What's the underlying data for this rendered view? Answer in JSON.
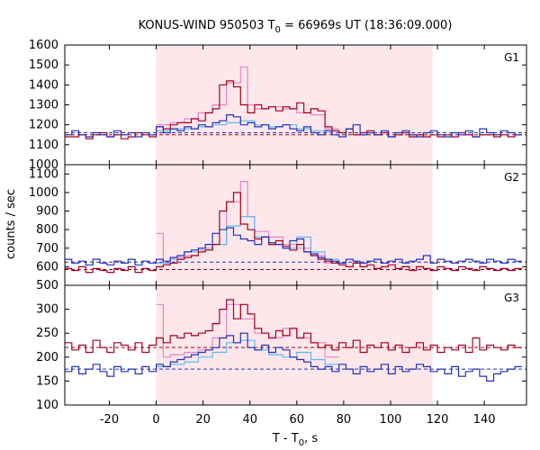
{
  "chart_data": {
    "type": "line",
    "title_main": "KONUS-WIND 950503 T",
    "title_sub": "0",
    "title_tail": " = 66969s UT (18:36:09.000)",
    "xlabel_main": "T - T",
    "xlabel_sub": "0",
    "xlabel_tail": ", s",
    "ylabel": "counts / sec",
    "xlim": [
      -39,
      158
    ],
    "x_ticks": [
      -20,
      0,
      20,
      40,
      60,
      80,
      100,
      120,
      140
    ],
    "x_tick_labels": [
      "-20",
      "0",
      "20",
      "40",
      "60",
      "80",
      "100",
      "120",
      "140"
    ],
    "shaded_interval": [
      0,
      118
    ],
    "colors": {
      "shade": "#fde7ea",
      "dark_red": "#a3001c",
      "pink": "#e883c8",
      "blue": "#2230b8",
      "light_blue": "#5fb8f0"
    },
    "panels": [
      {
        "name": "G1",
        "label": "G1",
        "ylim": [
          1000,
          1600
        ],
        "y_ticks": [
          1000,
          1100,
          1200,
          1300,
          1400,
          1500,
          1600
        ],
        "y_tick_labels": [
          "1000",
          "1100",
          "1200",
          "1300",
          "1400",
          "1500",
          "1600"
        ],
        "bg_red": 1150,
        "bg_blue": 1160,
        "dark_red_x": [
          -39,
          -33,
          -30,
          -27,
          -24,
          -21,
          -18,
          -15,
          -12,
          -9,
          -6,
          -3,
          0,
          3,
          6,
          9,
          12,
          15,
          18,
          21,
          24,
          27,
          30,
          33,
          36,
          39,
          42,
          45,
          48,
          51,
          54,
          57,
          60,
          63,
          66,
          69,
          72,
          75,
          78,
          81,
          84,
          87,
          90,
          93,
          96,
          99,
          102,
          105,
          108,
          111,
          114,
          117,
          120,
          123,
          126,
          129,
          132,
          135,
          138,
          141,
          144,
          147,
          150,
          153
        ],
        "dark_red_y": [
          1140,
          1150,
          1130,
          1150,
          1160,
          1140,
          1150,
          1130,
          1140,
          1160,
          1150,
          1140,
          1190,
          1180,
          1200,
          1210,
          1210,
          1230,
          1220,
          1260,
          1280,
          1400,
          1420,
          1390,
          1300,
          1260,
          1300,
          1280,
          1290,
          1270,
          1290,
          1280,
          1310,
          1260,
          1280,
          1270,
          1190,
          1170,
          1160,
          1180,
          1150,
          1160,
          1170,
          1150,
          1160,
          1140,
          1150,
          1160,
          1140,
          1150,
          1140,
          1150,
          1140,
          1150,
          1140,
          1160,
          1150,
          1140,
          1150,
          1150,
          1140,
          1150,
          1140,
          1150
        ],
        "pink_x": [
          0,
          6,
          12,
          18,
          24,
          30,
          36,
          39,
          42,
          48,
          54,
          60,
          66,
          72
        ],
        "pink_y": [
          1200,
          1210,
          1230,
          1260,
          1300,
          1410,
          1490,
          1300,
          1280,
          1290,
          1280,
          1260,
          1250,
          1180
        ],
        "blue_x": [
          -39,
          -36,
          -33,
          -30,
          -27,
          -24,
          -21,
          -18,
          -15,
          -12,
          -9,
          -6,
          -3,
          0,
          3,
          6,
          9,
          12,
          15,
          18,
          21,
          24,
          27,
          30,
          33,
          36,
          39,
          42,
          45,
          48,
          51,
          54,
          57,
          60,
          63,
          66,
          69,
          72,
          75,
          78,
          81,
          84,
          87,
          90,
          93,
          96,
          99,
          102,
          105,
          108,
          111,
          114,
          117,
          120,
          123,
          126,
          129,
          132,
          135,
          138,
          141,
          144,
          147,
          150,
          153
        ],
        "blue_y": [
          1150,
          1170,
          1150,
          1140,
          1160,
          1150,
          1140,
          1170,
          1150,
          1160,
          1140,
          1160,
          1150,
          1190,
          1160,
          1180,
          1170,
          1190,
          1180,
          1200,
          1190,
          1210,
          1220,
          1250,
          1240,
          1200,
          1210,
          1190,
          1200,
          1180,
          1190,
          1200,
          1180,
          1170,
          1190,
          1160,
          1150,
          1170,
          1150,
          1140,
          1180,
          1200,
          1150,
          1160,
          1150,
          1170,
          1140,
          1160,
          1170,
          1150,
          1140,
          1160,
          1170,
          1150,
          1140,
          1160,
          1150,
          1170,
          1140,
          1180,
          1160,
          1150,
          1170,
          1160,
          1150
        ],
        "light_blue_x": [
          0,
          6,
          12,
          18,
          24,
          30,
          36,
          42,
          48,
          54,
          60,
          66,
          72
        ],
        "light_blue_y": [
          1170,
          1180,
          1180,
          1190,
          1200,
          1210,
          1220,
          1200,
          1190,
          1200,
          1180,
          1170,
          1170
        ]
      },
      {
        "name": "G2",
        "label": "G2",
        "ylim": [
          500,
          1150
        ],
        "y_ticks": [
          500,
          600,
          700,
          800,
          900,
          1000,
          1100
        ],
        "y_tick_labels": [
          "500",
          "600",
          "700",
          "800",
          "900",
          "1000",
          "1100"
        ],
        "bg_red": 585,
        "bg_blue": 625,
        "dark_red_x": [
          -39,
          -36,
          -33,
          -30,
          -27,
          -24,
          -21,
          -18,
          -15,
          -12,
          -9,
          -6,
          -3,
          0,
          3,
          6,
          9,
          12,
          15,
          18,
          21,
          24,
          27,
          30,
          33,
          36,
          39,
          42,
          45,
          48,
          51,
          54,
          57,
          60,
          63,
          66,
          69,
          72,
          75,
          78,
          81,
          84,
          87,
          90,
          93,
          96,
          99,
          102,
          105,
          108,
          111,
          114,
          117,
          120,
          123,
          126,
          129,
          132,
          135,
          138,
          141,
          144,
          147,
          150,
          153
        ],
        "dark_red_y": [
          590,
          580,
          600,
          570,
          590,
          580,
          570,
          590,
          580,
          600,
          570,
          590,
          580,
          600,
          610,
          620,
          640,
          650,
          660,
          680,
          690,
          720,
          900,
          950,
          1000,
          830,
          800,
          750,
          760,
          720,
          740,
          710,
          690,
          720,
          680,
          660,
          640,
          630,
          620,
          610,
          600,
          620,
          600,
          610,
          590,
          600,
          610,
          590,
          600,
          580,
          600,
          590,
          580,
          600,
          590,
          580,
          600,
          590,
          580,
          600,
          590,
          580,
          590,
          580,
          590
        ],
        "pink_x": [
          0,
          3,
          6,
          12,
          18,
          24,
          30,
          36,
          39,
          42,
          48,
          54,
          60,
          66,
          72
        ],
        "pink_y": [
          780,
          620,
          650,
          660,
          690,
          720,
          950,
          1060,
          870,
          790,
          760,
          720,
          700,
          660,
          620
        ],
        "blue_x": [
          -39,
          -36,
          -33,
          -30,
          -27,
          -24,
          -21,
          -18,
          -15,
          -12,
          -9,
          -6,
          -3,
          0,
          3,
          6,
          9,
          12,
          15,
          18,
          21,
          24,
          27,
          30,
          33,
          36,
          39,
          42,
          45,
          48,
          51,
          54,
          57,
          60,
          63,
          66,
          69,
          72,
          75,
          78,
          81,
          84,
          87,
          90,
          93,
          96,
          99,
          102,
          105,
          108,
          111,
          114,
          117,
          120,
          123,
          126,
          129,
          132,
          135,
          138,
          141,
          144,
          147,
          150,
          153
        ],
        "blue_y": [
          640,
          620,
          630,
          610,
          640,
          620,
          610,
          630,
          620,
          640,
          610,
          630,
          620,
          640,
          630,
          650,
          660,
          680,
          690,
          700,
          720,
          780,
          800,
          810,
          770,
          750,
          740,
          720,
          760,
          730,
          720,
          700,
          740,
          750,
          680,
          670,
          650,
          640,
          630,
          620,
          640,
          630,
          620,
          630,
          640,
          620,
          630,
          640,
          620,
          630,
          640,
          660,
          620,
          640,
          630,
          620,
          630,
          640,
          630,
          620,
          640,
          630,
          620,
          640,
          630
        ],
        "light_blue_x": [
          0,
          6,
          12,
          18,
          24,
          30,
          36,
          42,
          48,
          54,
          60,
          66,
          72
        ],
        "light_blue_y": [
          620,
          640,
          680,
          700,
          720,
          820,
          870,
          760,
          720,
          700,
          760,
          680,
          640
        ]
      },
      {
        "name": "G3",
        "label": "G3",
        "ylim": [
          100,
          350
        ],
        "y_ticks": [
          100,
          150,
          200,
          250,
          300
        ],
        "y_tick_labels": [
          "100",
          "150",
          "200",
          "250",
          "300"
        ],
        "bg_red": 220,
        "bg_blue": 175,
        "dark_red_x": [
          -39,
          -36,
          -33,
          -30,
          -27,
          -24,
          -21,
          -18,
          -15,
          -12,
          -9,
          -6,
          -3,
          0,
          3,
          6,
          9,
          12,
          15,
          18,
          21,
          24,
          27,
          30,
          33,
          36,
          39,
          42,
          45,
          48,
          51,
          54,
          57,
          60,
          63,
          66,
          69,
          72,
          75,
          78,
          81,
          84,
          87,
          90,
          93,
          96,
          99,
          102,
          105,
          108,
          111,
          114,
          117,
          120,
          123,
          126,
          129,
          132,
          135,
          138,
          141,
          144,
          147,
          150,
          153
        ],
        "dark_red_y": [
          230,
          215,
          225,
          210,
          235,
          220,
          210,
          230,
          225,
          215,
          230,
          210,
          225,
          240,
          230,
          245,
          240,
          250,
          245,
          250,
          255,
          270,
          300,
          320,
          280,
          310,
          290,
          260,
          250,
          240,
          255,
          245,
          260,
          240,
          250,
          230,
          220,
          225,
          215,
          230,
          220,
          235,
          210,
          225,
          220,
          230,
          215,
          225,
          210,
          220,
          230,
          215,
          225,
          210,
          220,
          215,
          225,
          210,
          240,
          215,
          225,
          220,
          215,
          225,
          220
        ],
        "pink_x": [
          0,
          3,
          6,
          12,
          18,
          24,
          30,
          36,
          42,
          48,
          54,
          60,
          66,
          72
        ],
        "pink_y": [
          310,
          200,
          205,
          210,
          215,
          240,
          310,
          280,
          250,
          240,
          260,
          240,
          230,
          200
        ],
        "blue_x": [
          -39,
          -36,
          -33,
          -30,
          -27,
          -24,
          -21,
          -18,
          -15,
          -12,
          -9,
          -6,
          -3,
          0,
          3,
          6,
          9,
          12,
          15,
          18,
          21,
          24,
          27,
          30,
          33,
          36,
          39,
          42,
          45,
          48,
          51,
          54,
          57,
          60,
          63,
          66,
          69,
          72,
          75,
          78,
          81,
          84,
          87,
          90,
          93,
          96,
          99,
          102,
          105,
          108,
          111,
          114,
          117,
          120,
          123,
          126,
          129,
          132,
          135,
          138,
          141,
          144,
          147,
          150,
          153
        ],
        "blue_y": [
          170,
          180,
          165,
          175,
          185,
          170,
          160,
          180,
          170,
          175,
          165,
          180,
          170,
          185,
          180,
          190,
          195,
          200,
          205,
          210,
          215,
          220,
          240,
          245,
          230,
          250,
          220,
          215,
          225,
          210,
          220,
          215,
          200,
          195,
          190,
          180,
          175,
          180,
          170,
          185,
          175,
          165,
          180,
          170,
          175,
          185,
          165,
          180,
          170,
          175,
          185,
          180,
          170,
          175,
          165,
          180,
          160,
          170,
          175,
          160,
          150,
          165,
          170,
          175,
          180
        ],
        "light_blue_x": [
          0,
          6,
          12,
          18,
          24,
          30,
          36,
          42,
          48,
          54,
          60,
          66,
          72
        ],
        "light_blue_y": [
          180,
          185,
          190,
          200,
          210,
          230,
          235,
          215,
          205,
          200,
          210,
          195,
          185
        ]
      }
    ]
  }
}
